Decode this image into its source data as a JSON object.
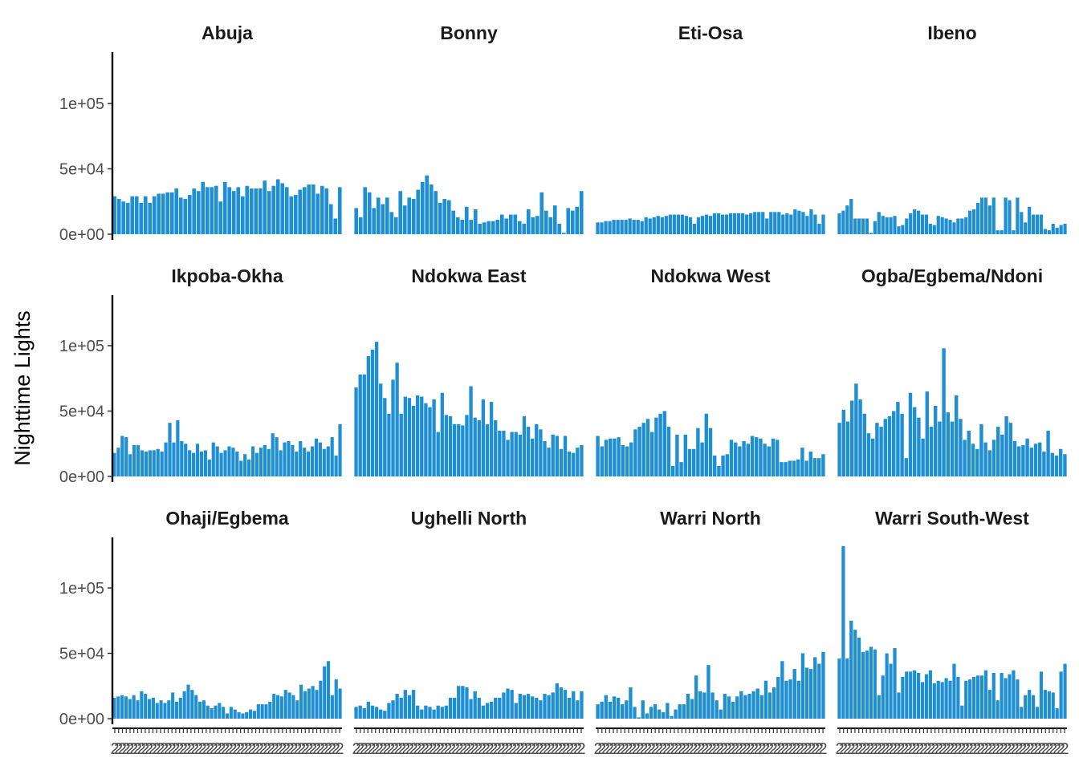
{
  "chart_data": {
    "type": "bar",
    "layout": "facet-grid 3 rows x 4 columns",
    "ylabel": "Nighttime Lights",
    "xlabel": "",
    "ylim": [
      0,
      137000
    ],
    "y_ticks": [
      0,
      50000,
      100000
    ],
    "y_tick_labels": [
      "0e+00",
      "5e+04",
      "1e+05"
    ],
    "x_tick_labels_overlapping": "2",
    "bar_color": "#1f8fd1",
    "grid": false,
    "facets": [
      {
        "name": "Abuja",
        "values": [
          29000,
          27000,
          25000,
          24000,
          29000,
          29000,
          24000,
          29000,
          24000,
          29000,
          31000,
          31000,
          32000,
          32000,
          35000,
          28000,
          27000,
          30000,
          35000,
          33000,
          40000,
          36000,
          36000,
          37000,
          25000,
          40000,
          36000,
          33000,
          36000,
          29000,
          37000,
          35000,
          35000,
          35000,
          41000,
          33000,
          37000,
          42000,
          39000,
          36000,
          29000,
          30000,
          34000,
          36000,
          38000,
          38000,
          31000,
          37000,
          35000,
          23000,
          12000,
          36000
        ]
      },
      {
        "name": "Bonny",
        "values": [
          20000,
          13000,
          36000,
          32000,
          20000,
          28000,
          23000,
          28000,
          17000,
          13000,
          33000,
          22000,
          28000,
          27000,
          34000,
          40000,
          45000,
          38000,
          33000,
          24000,
          27000,
          26000,
          18000,
          13000,
          11000,
          21000,
          11000,
          19000,
          8000,
          9000,
          10000,
          10000,
          11000,
          15000,
          12000,
          15000,
          15000,
          10000,
          8000,
          19000,
          13000,
          14000,
          32000,
          18000,
          13000,
          22000,
          8000,
          1000,
          20000,
          18000,
          21000,
          33000
        ]
      },
      {
        "name": "Eti-Osa",
        "values": [
          9000,
          9000,
          10000,
          10000,
          11000,
          11000,
          11000,
          11000,
          12000,
          11000,
          11000,
          10000,
          13000,
          12000,
          13000,
          14000,
          13000,
          14000,
          15000,
          15000,
          15000,
          15000,
          14000,
          13000,
          8000,
          13000,
          14000,
          15000,
          14000,
          16000,
          16000,
          15000,
          15000,
          16000,
          16000,
          16000,
          16000,
          15000,
          16000,
          17000,
          17000,
          17000,
          12000,
          17000,
          17000,
          17000,
          15000,
          16000,
          15000,
          19000,
          18000,
          17000,
          14000,
          19000,
          15000,
          8000,
          15000
        ]
      },
      {
        "name": "Ibeno",
        "values": [
          16000,
          18000,
          22000,
          27000,
          12000,
          12000,
          12000,
          12000,
          1000,
          10000,
          17000,
          14000,
          13000,
          13000,
          14000,
          6000,
          7000,
          12000,
          16000,
          19000,
          18000,
          15000,
          15000,
          8000,
          7000,
          14000,
          13000,
          12000,
          11000,
          9000,
          12000,
          12000,
          13000,
          18000,
          19000,
          24000,
          28000,
          28000,
          22000,
          28000,
          3000,
          3000,
          28000,
          26000,
          3000,
          28000,
          17000,
          9000,
          21000,
          15000,
          15000,
          15000,
          4000,
          3000,
          8000,
          5000,
          7000,
          8000
        ]
      },
      {
        "name": "Ikpoba-Okha",
        "values": [
          18000,
          22000,
          31000,
          30000,
          17000,
          24000,
          24000,
          20000,
          19000,
          20000,
          20000,
          21000,
          19000,
          26000,
          41000,
          26000,
          43000,
          27000,
          25000,
          20000,
          18000,
          25000,
          19000,
          20000,
          13000,
          26000,
          23000,
          18000,
          20000,
          23000,
          22000,
          19000,
          12000,
          17000,
          13000,
          23000,
          18000,
          22000,
          24000,
          21000,
          33000,
          30000,
          20000,
          26000,
          27000,
          24000,
          19000,
          27000,
          22000,
          19000,
          23000,
          29000,
          26000,
          21000,
          23000,
          30000,
          16000,
          40000
        ]
      },
      {
        "name": "Ndokwa East",
        "values": [
          68000,
          78000,
          78000,
          92000,
          97000,
          103000,
          71000,
          60000,
          48000,
          74000,
          87000,
          48000,
          61000,
          60000,
          54000,
          62000,
          61000,
          56000,
          53000,
          59000,
          34000,
          64000,
          47000,
          46000,
          40000,
          40000,
          39000,
          47000,
          69000,
          45000,
          43000,
          59000,
          40000,
          57000,
          43000,
          35000,
          35000,
          28000,
          34000,
          34000,
          32000,
          46000,
          38000,
          29000,
          40000,
          36000,
          27000,
          22000,
          32000,
          31000,
          21000,
          31000,
          19000,
          18000,
          22000,
          24000
        ]
      },
      {
        "name": "Ndokwa West",
        "values": [
          31000,
          23000,
          28000,
          29000,
          29000,
          30000,
          24000,
          23000,
          26000,
          36000,
          38000,
          41000,
          44000,
          34000,
          45000,
          48000,
          50000,
          38000,
          8000,
          32000,
          11000,
          32000,
          21000,
          21000,
          37000,
          26000,
          48000,
          37000,
          16000,
          8000,
          16000,
          17000,
          28000,
          26000,
          23000,
          27000,
          25000,
          31000,
          30000,
          29000,
          25000,
          23000,
          29000,
          28000,
          11000,
          11000,
          12000,
          12000,
          13000,
          22000,
          12000,
          19000,
          14000,
          14000,
          17000
        ]
      },
      {
        "name": "Ogba/Egbema/Ndoni",
        "values": [
          41000,
          51000,
          42000,
          58000,
          71000,
          59000,
          48000,
          33000,
          29000,
          41000,
          38000,
          44000,
          46000,
          50000,
          57000,
          48000,
          14000,
          64000,
          53000,
          45000,
          29000,
          65000,
          38000,
          54000,
          42000,
          98000,
          49000,
          42000,
          62000,
          44000,
          28000,
          35000,
          25000,
          21000,
          40000,
          26000,
          20000,
          28000,
          38000,
          32000,
          46000,
          41000,
          27000,
          23000,
          24000,
          29000,
          22000,
          25000,
          26000,
          19000,
          35000,
          18000,
          16000,
          21000,
          17000
        ]
      },
      {
        "name": "Ohaji/Egbema",
        "values": [
          16000,
          17000,
          18000,
          17000,
          15000,
          18000,
          14000,
          21000,
          19000,
          15000,
          16000,
          12000,
          14000,
          12000,
          14000,
          20000,
          13000,
          16000,
          21000,
          26000,
          22000,
          18000,
          13000,
          14000,
          10000,
          8000,
          10000,
          12000,
          9000,
          4000,
          9000,
          7000,
          5000,
          4000,
          5000,
          7000,
          6000,
          11000,
          11000,
          11000,
          13000,
          19000,
          18000,
          17000,
          22000,
          20000,
          18000,
          14000,
          26000,
          21000,
          23000,
          25000,
          22000,
          29000,
          40000,
          44000,
          18000,
          30000,
          23000
        ]
      },
      {
        "name": "Ughelli North",
        "values": [
          9000,
          10000,
          8000,
          13000,
          10000,
          9000,
          7000,
          6000,
          12000,
          14000,
          19000,
          16000,
          22000,
          18000,
          22000,
          10000,
          7000,
          10000,
          9000,
          7000,
          10000,
          9000,
          10000,
          16000,
          16000,
          25000,
          25000,
          24000,
          15000,
          21000,
          16000,
          10000,
          12000,
          13000,
          16000,
          16000,
          20000,
          23000,
          22000,
          12000,
          19000,
          18000,
          19000,
          17000,
          16000,
          14000,
          19000,
          18000,
          20000,
          27000,
          24000,
          22000,
          16000,
          21000,
          14000,
          21000
        ]
      },
      {
        "name": "Warri North",
        "values": [
          11000,
          13000,
          18000,
          13000,
          17000,
          16000,
          11000,
          14000,
          24000,
          9000,
          1000,
          14000,
          4000,
          9000,
          11000,
          7000,
          5000,
          12000,
          2000,
          7000,
          11000,
          11000,
          19000,
          15000,
          33000,
          21000,
          20000,
          41000,
          20000,
          14000,
          7000,
          19000,
          17000,
          13000,
          17000,
          21000,
          18000,
          19000,
          21000,
          23000,
          18000,
          29000,
          20000,
          24000,
          32000,
          44000,
          29000,
          30000,
          38000,
          29000,
          50000,
          39000,
          38000,
          47000,
          42000,
          51000
        ]
      },
      {
        "name": "Warri South-West",
        "values": [
          46000,
          132000,
          46000,
          75000,
          68000,
          62000,
          51000,
          52000,
          55000,
          53000,
          18000,
          33000,
          50000,
          42000,
          54000,
          20000,
          32000,
          36000,
          36000,
          37000,
          35000,
          28000,
          34000,
          37000,
          27000,
          29000,
          28000,
          31000,
          29000,
          42000,
          32000,
          10000,
          29000,
          30000,
          32000,
          33000,
          33000,
          37000,
          22000,
          35000,
          14000,
          35000,
          31000,
          34000,
          37000,
          30000,
          9000,
          18000,
          22000,
          18000,
          9000,
          36000,
          22000,
          21000,
          20000,
          8000,
          36000,
          42000
        ]
      }
    ]
  }
}
